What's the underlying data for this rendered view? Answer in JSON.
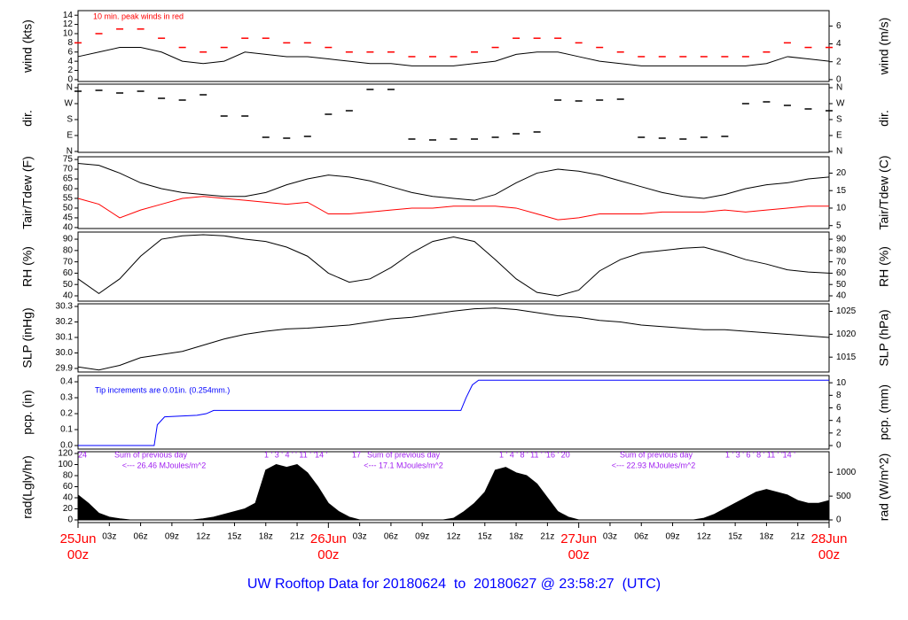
{
  "chart_data": [
    {
      "type": "line",
      "ylabel": "wind (kts)",
      "y2label": "wind (m/s)",
      "ylim": [
        -0.4,
        15
      ],
      "yticks": [
        0,
        2,
        4,
        6,
        8,
        10,
        12,
        14
      ],
      "y2lim": [
        -0.21,
        7.72
      ],
      "y2ticks": [
        0,
        2,
        4,
        6
      ],
      "annotations": [
        {
          "text": "10 min. peak winds in red",
          "color": "#ff0000"
        }
      ],
      "x": [
        0,
        2,
        4,
        6,
        8,
        10,
        12,
        14,
        16,
        18,
        20,
        22,
        24,
        26,
        28,
        30,
        32,
        34,
        36,
        38,
        40,
        42,
        44,
        46,
        48,
        50,
        52,
        54,
        56,
        58,
        60,
        62,
        64,
        66,
        68,
        70,
        72
      ],
      "series": [
        {
          "color": "#000000",
          "values": [
            5,
            6,
            7,
            7,
            6,
            4,
            3.5,
            4,
            6,
            5.5,
            5,
            5,
            4.5,
            4,
            3.5,
            3.5,
            3,
            3,
            3,
            3.5,
            4,
            5.5,
            6,
            6,
            5,
            4,
            3.5,
            3,
            3,
            3,
            3,
            3,
            3,
            3.5,
            5,
            4.5,
            4
          ]
        },
        {
          "color": "#ff0000",
          "marker": "dash",
          "values": [
            8,
            10,
            11,
            11,
            9,
            7,
            6,
            7,
            9,
            9,
            8,
            8,
            7,
            6,
            6,
            6,
            5,
            5,
            5,
            6,
            7,
            9,
            9,
            9,
            8,
            7,
            6,
            5,
            5,
            5,
            5,
            5,
            5,
            6,
            8,
            7,
            7
          ]
        }
      ]
    },
    {
      "type": "scatter",
      "ylabel": "dir.",
      "y2label": "dir.",
      "ylim": [
        -5,
        380
      ],
      "yticks": [
        {
          "value": 360,
          "label": "N"
        },
        {
          "value": 270,
          "label": "W"
        },
        {
          "value": 180,
          "label": "S"
        },
        {
          "value": 90,
          "label": "E"
        },
        {
          "value": 0,
          "label": "N"
        }
      ],
      "y2lim": [
        -5,
        380
      ],
      "y2ticks": [
        {
          "value": 360,
          "label": "N"
        },
        {
          "value": 270,
          "label": "W"
        },
        {
          "value": 180,
          "label": "S"
        },
        {
          "value": 90,
          "label": "E"
        },
        {
          "value": 0,
          "label": "N"
        }
      ],
      "x": [
        0,
        2,
        4,
        6,
        8,
        10,
        12,
        14,
        16,
        18,
        20,
        22,
        24,
        26,
        28,
        30,
        32,
        34,
        36,
        38,
        40,
        42,
        44,
        46,
        48,
        50,
        52,
        54,
        56,
        58,
        60,
        62,
        64,
        66,
        68,
        70,
        72
      ],
      "series": [
        {
          "color": "#000000",
          "values": [
            340,
            345,
            330,
            340,
            300,
            290,
            320,
            200,
            200,
            80,
            75,
            85,
            210,
            230,
            350,
            350,
            70,
            65,
            70,
            70,
            80,
            100,
            110,
            290,
            285,
            290,
            295,
            80,
            75,
            70,
            80,
            85,
            270,
            280,
            260,
            240,
            230
          ]
        }
      ]
    },
    {
      "type": "line",
      "ylabel": "Tair/Tdew (F)",
      "y2label": "Tair/Tdew (C)",
      "ylim": [
        39.5,
        76.4
      ],
      "yticks": [
        40,
        45,
        50,
        55,
        60,
        65,
        70,
        75
      ],
      "y2lim": [
        4.17,
        24.67
      ],
      "y2ticks": [
        5,
        10,
        15,
        20
      ],
      "x": [
        0,
        2,
        4,
        6,
        8,
        10,
        12,
        14,
        16,
        18,
        20,
        22,
        24,
        26,
        28,
        30,
        32,
        34,
        36,
        38,
        40,
        42,
        44,
        46,
        48,
        50,
        52,
        54,
        56,
        58,
        60,
        62,
        64,
        66,
        68,
        70,
        72
      ],
      "series": [
        {
          "color": "#000000",
          "values": [
            73,
            72,
            68,
            63,
            60,
            58,
            57,
            56,
            56,
            58,
            62,
            65,
            67,
            66,
            64,
            61,
            58,
            56,
            55,
            54,
            57,
            63,
            68,
            70,
            69,
            67,
            64,
            61,
            58,
            56,
            55,
            57,
            60,
            62,
            63,
            65,
            66
          ]
        },
        {
          "color": "#ff0000",
          "values": [
            55,
            52,
            45,
            49,
            52,
            55,
            56,
            55,
            54,
            53,
            52,
            53,
            47,
            47,
            48,
            49,
            50,
            50,
            51,
            51,
            51,
            50,
            47,
            44,
            45,
            47,
            47,
            47,
            48,
            48,
            48,
            49,
            48,
            49,
            50,
            51,
            51
          ]
        }
      ]
    },
    {
      "type": "line",
      "ylabel": "RH (%)",
      "y2label": "RH (%)",
      "ylim": [
        35.3,
        96.3
      ],
      "yticks": [
        40,
        50,
        60,
        70,
        80,
        90
      ],
      "y2lim": [
        35.3,
        96.3
      ],
      "y2ticks": [
        40,
        50,
        60,
        70,
        80,
        90
      ],
      "x": [
        0,
        2,
        4,
        6,
        8,
        10,
        12,
        14,
        16,
        18,
        20,
        22,
        24,
        26,
        28,
        30,
        32,
        34,
        36,
        38,
        40,
        42,
        44,
        46,
        48,
        50,
        52,
        54,
        56,
        58,
        60,
        62,
        64,
        66,
        68,
        70,
        72
      ],
      "series": [
        {
          "color": "#000000",
          "values": [
            55,
            42,
            55,
            75,
            90,
            93,
            94,
            93,
            90,
            88,
            83,
            75,
            60,
            52,
            55,
            65,
            78,
            88,
            92,
            88,
            72,
            55,
            43,
            40,
            45,
            62,
            72,
            78,
            80,
            82,
            83,
            78,
            72,
            68,
            63,
            61,
            60
          ]
        }
      ]
    },
    {
      "type": "line",
      "ylabel": "SLP (inHg)",
      "y2label": "SLP (hPa)",
      "ylim": [
        29.877,
        30.317
      ],
      "yticks": [
        29.9,
        {
          "value": 30,
          "label": "30.0"
        },
        30.1,
        30.2,
        30.3
      ],
      "y2lim": [
        1011.75,
        1026.65
      ],
      "y2ticks": [
        1015,
        1020,
        1025
      ],
      "x": [
        0,
        2,
        4,
        6,
        8,
        10,
        12,
        14,
        16,
        18,
        20,
        22,
        24,
        26,
        28,
        30,
        32,
        34,
        36,
        38,
        40,
        42,
        44,
        46,
        48,
        50,
        52,
        54,
        56,
        58,
        60,
        62,
        64,
        66,
        68,
        70,
        72
      ],
      "series": [
        {
          "color": "#000000",
          "values": [
            29.91,
            29.89,
            29.92,
            29.97,
            29.99,
            30.01,
            30.05,
            30.09,
            30.12,
            30.14,
            30.155,
            30.16,
            30.17,
            30.18,
            30.2,
            30.22,
            30.23,
            30.25,
            30.27,
            30.285,
            30.29,
            30.28,
            30.26,
            30.24,
            30.23,
            30.21,
            30.2,
            30.18,
            30.17,
            30.16,
            30.15,
            30.15,
            30.14,
            30.13,
            30.12,
            30.11,
            30.1
          ]
        }
      ]
    },
    {
      "type": "line",
      "ylabel": "pcp. (in)",
      "y2label": "pcp. (mm)",
      "ylim": [
        -0.022,
        0.439
      ],
      "yticks": [
        {
          "value": 0,
          "label": "0.0"
        },
        0.1,
        0.2,
        0.3,
        0.4
      ],
      "y2lim": [
        -0.56,
        11.15
      ],
      "y2ticks": [
        0,
        2,
        4,
        6,
        8,
        10
      ],
      "annotations": [
        {
          "text": "Tip increments are 0.01in. (0.254mm.)",
          "color": "#0000ff"
        }
      ],
      "x": [
        0,
        7.3,
        7.6,
        8.3,
        11.4,
        12.3,
        13,
        36.7,
        37.2,
        37.8,
        38.4,
        72
      ],
      "series": [
        {
          "color": "#0000ff",
          "values": [
            0,
            0,
            0.13,
            0.18,
            0.19,
            0.2,
            0.22,
            0.22,
            0.3,
            0.38,
            0.41,
            0.41
          ]
        }
      ]
    },
    {
      "type": "area",
      "ylabel": "rad(Lgly/hr)",
      "y2label": "rad (W/m^2)",
      "ylim": [
        -4.8,
        123.2
      ],
      "yticks": [
        0,
        20,
        40,
        60,
        80,
        100,
        120
      ],
      "y2lim": [
        -55.8,
        1432.8
      ],
      "y2ticks": [
        0,
        500,
        1000
      ],
      "annotations": [
        {
          "text": "24",
          "color": "#a020f0"
        },
        {
          "text": "Sum of previous day",
          "color": "#a020f0"
        },
        {
          "text": "<--- 26.46 MJoules/m^2",
          "color": "#a020f0"
        },
        {
          "text": "1 ' 3 ' 4 ' ' 11 ' '14 '",
          "color": "#a020f0"
        },
        {
          "text": "17",
          "color": "#a020f0"
        },
        {
          "text": "Sum of previous day",
          "color": "#a020f0"
        },
        {
          "text": "<--- 17.1 MJoules/m^2",
          "color": "#a020f0"
        },
        {
          "text": "1 ' 4 ' 8 ' 11 ' '16 ' 20",
          "color": "#a020f0"
        },
        {
          "text": "Sum of previous day",
          "color": "#a020f0"
        },
        {
          "text": "<--- 22.93 MJoules/m^2",
          "color": "#a020f0"
        },
        {
          "text": "1 ' 3 ' 6 ' 8 ' 11 ' '14 '",
          "color": "#a020f0"
        }
      ],
      "x": [
        0,
        1,
        2,
        3,
        4,
        5,
        6,
        7,
        8,
        9,
        10,
        11,
        12,
        13,
        14,
        15,
        16,
        17,
        18,
        19,
        20,
        21,
        22,
        23,
        24,
        25,
        26,
        27,
        28,
        29,
        30,
        31,
        32,
        33,
        34,
        35,
        36,
        37,
        38,
        39,
        40,
        41,
        42,
        43,
        44,
        45,
        46,
        47,
        48,
        49,
        50,
        51,
        52,
        53,
        54,
        55,
        56,
        57,
        58,
        59,
        60,
        61,
        62,
        63,
        64,
        65,
        66,
        67,
        68,
        69,
        70,
        71,
        72
      ],
      "series": [
        {
          "color": "#000000",
          "values": [
            45,
            30,
            12,
            5,
            2,
            0,
            0,
            0,
            0,
            0,
            0,
            0,
            2,
            5,
            10,
            15,
            20,
            30,
            90,
            100,
            95,
            100,
            85,
            60,
            30,
            15,
            5,
            0,
            0,
            0,
            0,
            0,
            0,
            0,
            0,
            0,
            3,
            15,
            30,
            50,
            90,
            95,
            85,
            80,
            65,
            40,
            15,
            5,
            0,
            0,
            0,
            0,
            0,
            0,
            0,
            0,
            0,
            0,
            0,
            0,
            3,
            10,
            20,
            30,
            40,
            50,
            55,
            50,
            45,
            35,
            30,
            30,
            35
          ]
        }
      ]
    }
  ],
  "x_axis": {
    "xlim": [
      0,
      72
    ],
    "xticks": [
      {
        "value": 3,
        "label": "03z"
      },
      {
        "value": 6,
        "label": "06z"
      },
      {
        "value": 9,
        "label": "09z"
      },
      {
        "value": 12,
        "label": "12z"
      },
      {
        "value": 15,
        "label": "15z"
      },
      {
        "value": 18,
        "label": "18z"
      },
      {
        "value": 21,
        "label": "21z"
      },
      {
        "value": 27,
        "label": "03z"
      },
      {
        "value": 30,
        "label": "06z"
      },
      {
        "value": 33,
        "label": "09z"
      },
      {
        "value": 36,
        "label": "12z"
      },
      {
        "value": 39,
        "label": "15z"
      },
      {
        "value": 42,
        "label": "18z"
      },
      {
        "value": 45,
        "label": "21z"
      },
      {
        "value": 51,
        "label": "03z"
      },
      {
        "value": 54,
        "label": "06z"
      },
      {
        "value": 57,
        "label": "09z"
      },
      {
        "value": 60,
        "label": "12z"
      },
      {
        "value": 63,
        "label": "15z"
      },
      {
        "value": 66,
        "label": "18z"
      },
      {
        "value": 69,
        "label": "21z"
      }
    ],
    "day_ticks": [
      {
        "value": 0,
        "label": "25Jun",
        "sublabel": "00z"
      },
      {
        "value": 24,
        "label": "26Jun",
        "sublabel": "00z"
      },
      {
        "value": 48,
        "label": "27Jun",
        "sublabel": "00z"
      },
      {
        "value": 72,
        "label": "28Jun",
        "sublabel": "00z"
      }
    ]
  },
  "footer": "UW Rooftop Data for 20180624  to  20180627 @ 23:58:27  (UTC)"
}
